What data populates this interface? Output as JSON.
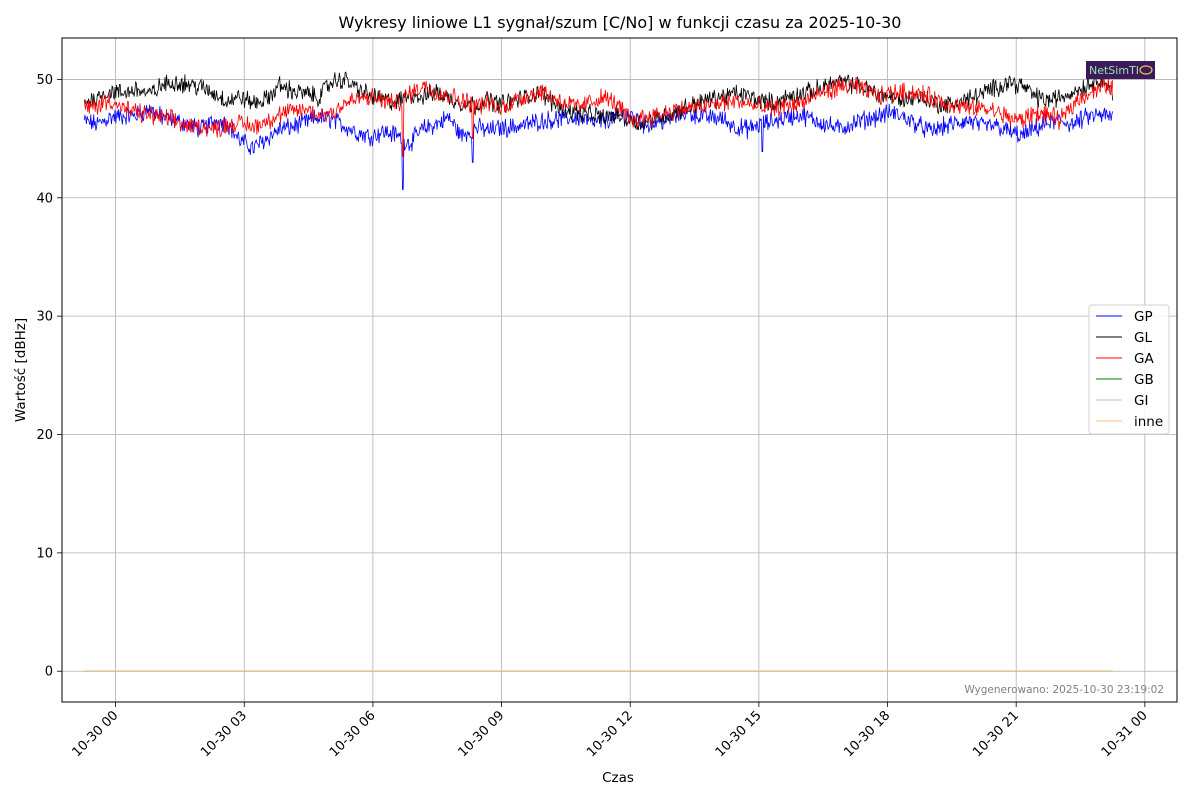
{
  "chart_data": {
    "type": "line",
    "title": "Wykresy liniowe L1 sygnał/szum [C/No] w funkcji czasu za 2025-10-30",
    "xlabel": "Czas",
    "ylabel": "Wartość [dBHz]",
    "x_start": "2025-10-29 23:16",
    "x_end": "2025-10-30 23:15",
    "xlim": [
      "2025-10-29 22:45",
      "2025-10-31 00:45"
    ],
    "ylim": [
      -2.6,
      53.5
    ],
    "x_ticks": [
      "10-30 00",
      "10-30 03",
      "10-30 06",
      "10-30 09",
      "10-30 12",
      "10-30 15",
      "10-30 18",
      "10-30 21",
      "10-31 00"
    ],
    "y_ticks": [
      0,
      10,
      20,
      30,
      40,
      50
    ],
    "grid": true,
    "legend_position": "right",
    "series": [
      {
        "name": "GP",
        "color": "#0000ff",
        "samples": [
          46.5,
          46.2,
          46.8,
          46.9,
          47.0,
          47.5,
          46.8,
          46.5,
          46.2,
          45.8,
          46.5,
          46.3,
          44.8,
          44.2,
          45.0,
          45.8,
          46.0,
          46.4,
          46.8,
          46.6,
          46.1,
          45.5,
          45.2,
          45.6,
          45.3,
          44.6,
          45.8,
          46.2,
          46.8,
          45.2,
          46.0,
          45.7,
          45.9,
          46.0,
          46.2,
          46.5,
          46.6,
          46.7,
          46.8,
          46.3,
          46.5,
          46.9,
          47.0,
          46.2,
          46.4,
          46.6,
          47.2,
          47.0,
          46.8,
          46.7,
          46.0,
          45.8,
          46.2,
          46.5,
          46.8,
          47.0,
          46.6,
          46.2,
          45.8,
          46.3,
          46.6,
          46.9,
          47.2,
          46.8,
          46.2,
          45.6,
          46.0,
          46.3,
          46.5,
          46.0,
          46.1,
          45.6,
          45.2,
          45.8,
          46.3,
          46.5,
          46.2,
          46.8,
          47.0,
          46.8
        ]
      },
      {
        "name": "GL",
        "color": "#000000",
        "samples": [
          48.0,
          48.5,
          49.0,
          48.8,
          49.2,
          48.7,
          49.5,
          49.8,
          49.6,
          49.3,
          48.8,
          48.2,
          48.5,
          48.0,
          48.3,
          49.5,
          49.0,
          48.8,
          48.5,
          49.8,
          50.0,
          49.2,
          48.6,
          48.3,
          48.0,
          48.8,
          48.5,
          49.0,
          48.4,
          48.0,
          47.8,
          48.3,
          47.9,
          48.2,
          48.5,
          49.0,
          48.0,
          47.5,
          47.2,
          47.0,
          46.8,
          47.0,
          46.5,
          46.3,
          46.8,
          47.0,
          47.5,
          48.0,
          48.3,
          48.5,
          48.8,
          48.6,
          48.2,
          48.0,
          48.5,
          48.8,
          49.0,
          49.5,
          49.8,
          49.6,
          49.2,
          48.8,
          48.5,
          48.3,
          48.6,
          48.2,
          47.8,
          48.0,
          48.4,
          48.8,
          49.3,
          49.8,
          49.5,
          48.6,
          48.2,
          48.5,
          49.0,
          49.5,
          50.2,
          49.0
        ]
      },
      {
        "name": "GA",
        "color": "#ff0000",
        "samples": [
          47.5,
          47.8,
          48.3,
          47.5,
          47.2,
          47.0,
          46.8,
          46.5,
          46.0,
          46.1,
          45.8,
          46.2,
          46.3,
          46.0,
          46.5,
          47.0,
          47.3,
          47.5,
          47.0,
          47.2,
          48.0,
          48.3,
          48.5,
          48.2,
          48.0,
          48.8,
          49.5,
          49.0,
          48.6,
          48.3,
          47.8,
          48.0,
          47.5,
          48.2,
          48.6,
          49.0,
          48.5,
          48.0,
          47.6,
          48.2,
          48.5,
          47.8,
          46.5,
          46.8,
          47.0,
          47.3,
          47.5,
          47.6,
          47.8,
          48.0,
          48.2,
          47.9,
          47.6,
          47.5,
          47.8,
          48.0,
          48.5,
          49.0,
          49.3,
          49.5,
          49.0,
          48.6,
          48.8,
          49.0,
          48.8,
          48.5,
          48.0,
          47.8,
          47.5,
          47.6,
          47.3,
          46.8,
          46.5,
          47.2,
          47.0,
          46.5,
          48.0,
          48.8,
          49.2,
          49.5
        ]
      },
      {
        "name": "GB",
        "color": "#008000",
        "samples": [
          0
        ]
      },
      {
        "name": "GI",
        "color": "#a6c8e8",
        "samples": [
          0
        ]
      },
      {
        "name": "inne",
        "color": "#ffbf80",
        "samples": [
          0
        ]
      }
    ],
    "dips": [
      {
        "series": "GP",
        "time": "2025-10-30 06:42",
        "value": 40.7
      },
      {
        "series": "GA",
        "time": "2025-10-30 06:42",
        "value": 43.5
      },
      {
        "series": "GP",
        "time": "2025-10-30 08:20",
        "value": 43.0
      },
      {
        "series": "GA",
        "time": "2025-10-30 08:20",
        "value": 45.0
      },
      {
        "series": "GP",
        "time": "2025-10-30 15:05",
        "value": 43.9
      }
    ],
    "footer_note": "Wygenerowano: 2025-10-30 23:19:02"
  },
  "logo": {
    "text": "NetSimTI"
  }
}
